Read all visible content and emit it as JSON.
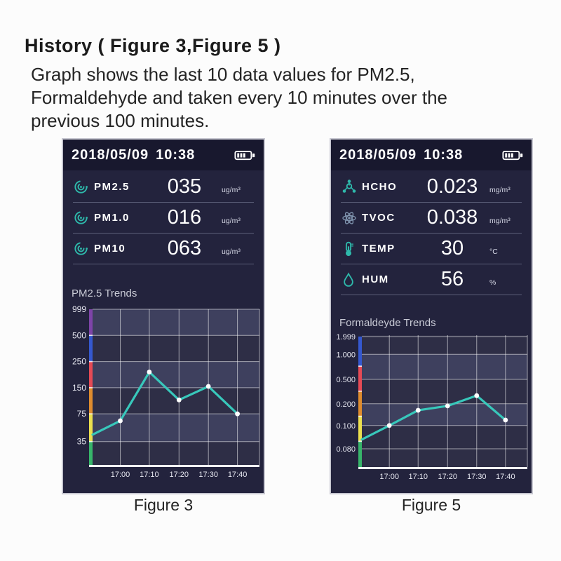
{
  "page": {
    "heading": "History ( Figure 3,Figure 5 )",
    "description_lines": [
      "Graph shows the last 10 data values for PM2.5,",
      "Formaldehyde and taken every 10 minutes over the",
      "previous 100 minutes."
    ]
  },
  "figure3": {
    "caption": "Figure 3",
    "header": {
      "date": "2018/05/09",
      "time": "10:38",
      "battery_icon": "battery-icon"
    },
    "metrics": [
      {
        "icon": "particle-swirl-icon",
        "label": "PM2.5",
        "value": "035",
        "unit": "ug/m³"
      },
      {
        "icon": "particle-swirl-icon",
        "label": "PM1.0",
        "value": "016",
        "unit": "ug/m³"
      },
      {
        "icon": "particle-swirl-icon",
        "label": "PM10",
        "value": "063",
        "unit": "ug/m³"
      }
    ]
  },
  "figure5": {
    "caption": "Figure 5",
    "header": {
      "date": "2018/05/09",
      "time": "10:38",
      "battery_icon": "battery-icon"
    },
    "metrics": [
      {
        "icon": "molecule-icon",
        "label": "HCHO",
        "value": "0.023",
        "unit": "mg/m³"
      },
      {
        "icon": "atom-icon",
        "label": "TVOC",
        "value": "0.038",
        "unit": "mg/m³"
      },
      {
        "icon": "thermometer-icon",
        "label": "TEMP",
        "value": "30",
        "unit": "°C"
      },
      {
        "icon": "droplet-icon",
        "label": "HUM",
        "value": "56",
        "unit": "%"
      }
    ]
  },
  "chart_data": [
    {
      "type": "line",
      "title": "PM2.5 Trends",
      "x_labels": [
        "17:00",
        "17:10",
        "17:20",
        "17:30",
        "17:40"
      ],
      "x_points": [
        "start",
        "17:00",
        "17:10",
        "17:20",
        "17:30",
        "17:40"
      ],
      "y_ticks": [
        999,
        500,
        250,
        150,
        75,
        35
      ],
      "y_tick_labels": [
        "999",
        "500",
        "250",
        "150",
        "75",
        "35"
      ],
      "values": [
        45,
        65,
        210,
        115,
        155,
        75
      ],
      "ylim": [
        0,
        999
      ],
      "grid": "on",
      "line_color": "#38c8bb",
      "point_color": "#ffffff",
      "y_axis_colors": [
        "#7e44a8",
        "#3558cf",
        "#e64a55",
        "#df8c2e",
        "#ecdf4e",
        "#37b56a"
      ]
    },
    {
      "type": "line",
      "title": "Formaldeyde Trends",
      "x_labels": [
        "17:00",
        "17:10",
        "17:20",
        "17:30",
        "17:40"
      ],
      "x_points": [
        "start",
        "17:00",
        "17:10",
        "17:20",
        "17:30",
        "17:40"
      ],
      "y_ticks": [
        1.999,
        1.0,
        0.5,
        0.2,
        0.1,
        0.08
      ],
      "y_tick_labels": [
        "1.999",
        "1.000",
        "0.500",
        "0.200",
        "0.100",
        "0.080"
      ],
      "values": [
        0.088,
        0.1,
        0.17,
        0.19,
        0.3,
        0.125
      ],
      "ylim": [
        0,
        1.999
      ],
      "grid": "on",
      "line_color": "#38c8bb",
      "point_color": "#ffffff",
      "y_axis_colors": [
        "#3558cf",
        "#e64a55",
        "#df8c2e",
        "#ecdf4e",
        "#37b56a"
      ]
    }
  ],
  "colors": {
    "screen_background": "#23233d",
    "statusbar_background": "#18182e",
    "accent_teal": "#2eb9ab",
    "value_text": "#ffffff",
    "chart_grid": "#ffffff",
    "page_background": "#fcfcfc"
  }
}
